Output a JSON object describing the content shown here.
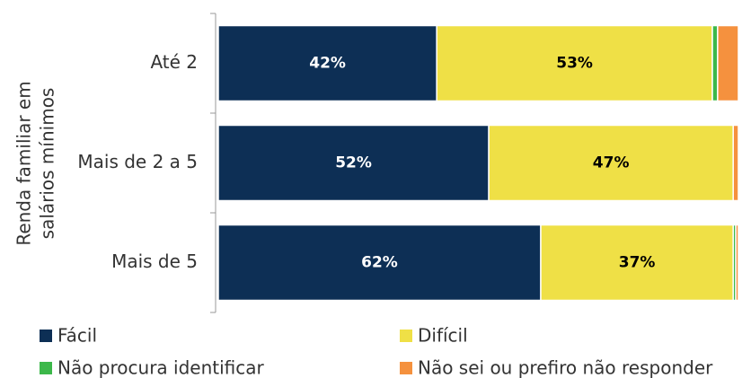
{
  "chart_data": {
    "type": "stacked-barh",
    "y_label": [
      "Renda familiar em",
      "salários mínimos"
    ],
    "categories": [
      "Até 2",
      "Mais de 2 a 5",
      "Mais de 5"
    ],
    "xlim": [
      0,
      100
    ],
    "series": [
      {
        "name": "Fácil",
        "color": "#0d2f55",
        "values": [
          42,
          52,
          62
        ],
        "value_labels": [
          "42%",
          "52%",
          "62%"
        ]
      },
      {
        "name": "Difícil",
        "color": "#efe046",
        "values": [
          53,
          47,
          37
        ],
        "value_labels": [
          "53%",
          "47%",
          "37%"
        ]
      },
      {
        "name": "Não procura identificar",
        "color": "#3cb84a",
        "values": [
          1,
          0,
          0.5
        ]
      },
      {
        "name": "Não sei ou prefiro não responder",
        "color": "#f5913e",
        "values": [
          4,
          1,
          0.5
        ]
      }
    ]
  }
}
